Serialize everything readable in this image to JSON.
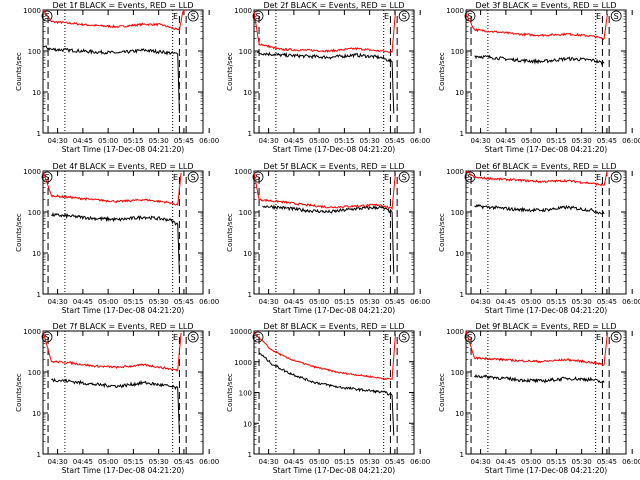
{
  "chart_data": [
    {
      "type": "line",
      "title": "Det 1f BLACK = Events, RED = LLD",
      "ylabel": "Counts/sec",
      "xlabel": "Start Time (17-Dec-08 04:21:20)",
      "y_scale": "log",
      "ylim": [
        1,
        1000
      ],
      "yticks": [
        "1",
        "10",
        "100",
        "1000"
      ],
      "xticks": [
        "04:30",
        "04:45",
        "05:00",
        "05:15",
        "05:30",
        "05:45",
        "06:00"
      ],
      "annotations": [
        "S",
        "E",
        "S"
      ],
      "series": [
        {
          "color": "#ff0000",
          "points": [
            [
              0,
              1000
            ],
            [
              5,
              520
            ],
            [
              15,
              480
            ],
            [
              30,
              420
            ],
            [
              45,
              390
            ],
            [
              60,
              450
            ],
            [
              70,
              440
            ],
            [
              80,
              330
            ],
            [
              81,
              320
            ],
            [
              83,
              900
            ],
            [
              84,
              1000
            ]
          ]
        },
        {
          "color": "#000000",
          "points": [
            [
              0,
              130
            ],
            [
              5,
              110
            ],
            [
              15,
              105
            ],
            [
              30,
              95
            ],
            [
              45,
              90
            ],
            [
              60,
              105
            ],
            [
              70,
              95
            ],
            [
              80,
              85
            ],
            [
              81,
              3
            ]
          ]
        }
      ]
    },
    {
      "type": "line",
      "title": "Det 2f BLACK = Events, RED = LLD",
      "ylabel": "Counts/sec",
      "xlabel": "Start Time (17-Dec-08 04:21:20)",
      "y_scale": "log",
      "ylim": [
        1,
        1000
      ],
      "yticks": [
        "1",
        "10",
        "100",
        "1000"
      ],
      "xticks": [
        "04:30",
        "04:45",
        "05:00",
        "05:15",
        "05:30",
        "05:45",
        "06:00"
      ],
      "annotations": [
        "S",
        "E",
        "S"
      ],
      "series": [
        {
          "color": "#ff0000",
          "points": [
            [
              0,
              900
            ],
            [
              3,
              150
            ],
            [
              15,
              110
            ],
            [
              30,
              105
            ],
            [
              45,
              100
            ],
            [
              60,
              115
            ],
            [
              75,
              100
            ],
            [
              82,
              95
            ],
            [
              84,
              900
            ]
          ]
        },
        {
          "color": "#000000",
          "points": [
            [
              2,
              90
            ],
            [
              15,
              80
            ],
            [
              30,
              75
            ],
            [
              45,
              70
            ],
            [
              60,
              80
            ],
            [
              75,
              70
            ],
            [
              82,
              55
            ],
            [
              83,
              3
            ]
          ]
        }
      ]
    },
    {
      "type": "line",
      "title": "Det 3f BLACK = Events, RED = LLD",
      "ylabel": "Counts/sec",
      "xlabel": "Start Time (17-Dec-08 04:21:20)",
      "y_scale": "log",
      "ylim": [
        1,
        1000
      ],
      "yticks": [
        "1",
        "10",
        "100",
        "1000"
      ],
      "xticks": [
        "04:30",
        "04:45",
        "05:00",
        "05:15",
        "05:30",
        "05:45",
        "06:00"
      ],
      "annotations": [
        "S",
        "E",
        "S"
      ],
      "series": [
        {
          "color": "#ff0000",
          "points": [
            [
              0,
              800
            ],
            [
              5,
              330
            ],
            [
              15,
              300
            ],
            [
              30,
              260
            ],
            [
              45,
              240
            ],
            [
              60,
              260
            ],
            [
              75,
              230
            ],
            [
              82,
              200
            ],
            [
              84,
              800
            ]
          ]
        },
        {
          "color": "#000000",
          "points": [
            [
              5,
              75
            ],
            [
              15,
              70
            ],
            [
              30,
              60
            ],
            [
              45,
              55
            ],
            [
              60,
              65
            ],
            [
              75,
              60
            ],
            [
              82,
              50
            ]
          ]
        }
      ]
    },
    {
      "type": "line",
      "title": "Det 4f BLACK = Events, RED = LLD",
      "ylabel": "Counts/sec",
      "xlabel": "Start Time (17-Dec-08 04:21:20)",
      "y_scale": "log",
      "ylim": [
        1,
        1000
      ],
      "yticks": [
        "1",
        "10",
        "100",
        "1000"
      ],
      "xticks": [
        "04:30",
        "04:45",
        "05:00",
        "05:15",
        "05:30",
        "05:45",
        "06:00"
      ],
      "annotations": [
        "S",
        "E",
        "S"
      ],
      "series": [
        {
          "color": "#ff0000",
          "points": [
            [
              0,
              1000
            ],
            [
              5,
              250
            ],
            [
              15,
              230
            ],
            [
              30,
              200
            ],
            [
              45,
              180
            ],
            [
              60,
              200
            ],
            [
              75,
              170
            ],
            [
              80,
              150
            ],
            [
              82,
              900
            ]
          ]
        },
        {
          "color": "#000000",
          "points": [
            [
              5,
              85
            ],
            [
              15,
              80
            ],
            [
              30,
              70
            ],
            [
              45,
              65
            ],
            [
              60,
              75
            ],
            [
              75,
              65
            ],
            [
              80,
              50
            ],
            [
              81,
              3
            ]
          ]
        }
      ]
    },
    {
      "type": "line",
      "title": "Det 5f BLACK = Events, RED = LLD",
      "ylabel": "Counts/sec",
      "xlabel": "Start Time (17-Dec-08 04:21:20)",
      "y_scale": "log",
      "ylim": [
        1,
        1000
      ],
      "yticks": [
        "1",
        "10",
        "100",
        "1000"
      ],
      "xticks": [
        "04:30",
        "04:45",
        "05:00",
        "05:15",
        "05:30",
        "05:45",
        "06:00"
      ],
      "annotations": [
        "S",
        "E",
        "S"
      ],
      "series": [
        {
          "color": "#ff0000",
          "points": [
            [
              0,
              900
            ],
            [
              3,
              200
            ],
            [
              15,
              180
            ],
            [
              30,
              150
            ],
            [
              45,
              130
            ],
            [
              60,
              140
            ],
            [
              75,
              150
            ],
            [
              82,
              120
            ],
            [
              84,
              900
            ]
          ]
        },
        {
          "color": "#000000",
          "points": [
            [
              5,
              140
            ],
            [
              15,
              130
            ],
            [
              30,
              110
            ],
            [
              45,
              100
            ],
            [
              60,
              120
            ],
            [
              75,
              130
            ],
            [
              82,
              100
            ],
            [
              83,
              3
            ]
          ]
        }
      ]
    },
    {
      "type": "line",
      "title": "Det 6f BLACK = Events, RED = LLD",
      "ylabel": "Counts/sec",
      "xlabel": "Start Time (17-Dec-08 04:21:20)",
      "y_scale": "log",
      "ylim": [
        1,
        1000
      ],
      "yticks": [
        "1",
        "10",
        "100",
        "1000"
      ],
      "xticks": [
        "04:30",
        "04:45",
        "05:00",
        "05:15",
        "05:30",
        "05:45",
        "06:00"
      ],
      "annotations": [
        "S",
        "E",
        "S"
      ],
      "series": [
        {
          "color": "#ff0000",
          "points": [
            [
              0,
              1000
            ],
            [
              5,
              700
            ],
            [
              15,
              650
            ],
            [
              30,
              600
            ],
            [
              45,
              550
            ],
            [
              60,
              580
            ],
            [
              75,
              500
            ],
            [
              82,
              450
            ],
            [
              84,
              1000
            ]
          ]
        },
        {
          "color": "#000000",
          "points": [
            [
              5,
              140
            ],
            [
              15,
              130
            ],
            [
              30,
              115
            ],
            [
              45,
              110
            ],
            [
              60,
              130
            ],
            [
              75,
              110
            ],
            [
              82,
              90
            ]
          ]
        }
      ]
    },
    {
      "type": "line",
      "title": "Det 7f BLACK = Events, RED = LLD",
      "ylabel": "Counts/sec",
      "xlabel": "Start Time (17-Dec-08 04:21:20)",
      "y_scale": "log",
      "ylim": [
        1,
        1000
      ],
      "yticks": [
        "1",
        "10",
        "100",
        "1000"
      ],
      "xticks": [
        "04:30",
        "04:45",
        "05:00",
        "05:15",
        "05:30",
        "05:45",
        "06:00"
      ],
      "annotations": [
        "S",
        "E",
        "S"
      ],
      "series": [
        {
          "color": "#ff0000",
          "points": [
            [
              0,
              1000
            ],
            [
              5,
              180
            ],
            [
              15,
              170
            ],
            [
              30,
              140
            ],
            [
              45,
              130
            ],
            [
              60,
              150
            ],
            [
              75,
              120
            ],
            [
              80,
              110
            ],
            [
              82,
              900
            ]
          ]
        },
        {
          "color": "#000000",
          "points": [
            [
              5,
              65
            ],
            [
              15,
              60
            ],
            [
              30,
              50
            ],
            [
              45,
              45
            ],
            [
              60,
              55
            ],
            [
              75,
              45
            ],
            [
              80,
              40
            ],
            [
              81,
              3
            ]
          ]
        }
      ]
    },
    {
      "type": "line",
      "title": "Det 8f BLACK = Events, RED = LLD",
      "ylabel": "Counts/sec",
      "xlabel": "Start Time (17-Dec-08 04:21:20)",
      "y_scale": "log",
      "ylim": [
        1,
        10000
      ],
      "yticks": [
        "1",
        "10",
        "100",
        "1000",
        "10000"
      ],
      "xticks": [
        "04:30",
        "04:45",
        "05:00",
        "05:15",
        "05:30",
        "05:45",
        "06:00"
      ],
      "annotations": [
        "S",
        "E",
        "S"
      ],
      "series": [
        {
          "color": "#ff0000",
          "points": [
            [
              0,
              9000
            ],
            [
              10,
              2500
            ],
            [
              20,
              1300
            ],
            [
              35,
              700
            ],
            [
              50,
              450
            ],
            [
              65,
              350
            ],
            [
              78,
              280
            ],
            [
              82,
              270
            ],
            [
              84,
              8000
            ]
          ]
        },
        {
          "color": "#000000",
          "points": [
            [
              3,
              2000
            ],
            [
              10,
              900
            ],
            [
              20,
              450
            ],
            [
              35,
              220
            ],
            [
              50,
              150
            ],
            [
              65,
              120
            ],
            [
              78,
              100
            ],
            [
              82,
              80
            ],
            [
              83,
              4
            ]
          ]
        }
      ]
    },
    {
      "type": "line",
      "title": "Det 9f BLACK = Events, RED = LLD",
      "ylabel": "Counts/sec",
      "xlabel": "Start Time (17-Dec-08 04:21:20)",
      "y_scale": "log",
      "ylim": [
        1,
        1000
      ],
      "yticks": [
        "1",
        "10",
        "100",
        "1000"
      ],
      "xticks": [
        "04:30",
        "04:45",
        "05:00",
        "05:15",
        "05:30",
        "05:45",
        "06:00"
      ],
      "annotations": [
        "S",
        "E",
        "S"
      ],
      "series": [
        {
          "color": "#ff0000",
          "points": [
            [
              0,
              1000
            ],
            [
              5,
              220
            ],
            [
              15,
              210
            ],
            [
              30,
              190
            ],
            [
              45,
              180
            ],
            [
              60,
              200
            ],
            [
              75,
              170
            ],
            [
              82,
              150
            ],
            [
              84,
              900
            ]
          ]
        },
        {
          "color": "#000000",
          "points": [
            [
              5,
              80
            ],
            [
              15,
              75
            ],
            [
              30,
              65
            ],
            [
              45,
              60
            ],
            [
              60,
              70
            ],
            [
              75,
              65
            ],
            [
              82,
              55
            ]
          ]
        }
      ]
    }
  ]
}
